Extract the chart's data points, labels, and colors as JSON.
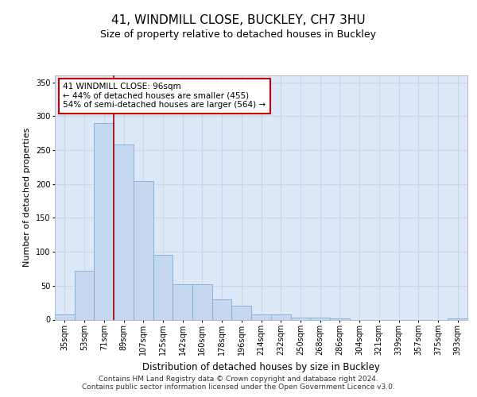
{
  "title": "41, WINDMILL CLOSE, BUCKLEY, CH7 3HU",
  "subtitle": "Size of property relative to detached houses in Buckley",
  "xlabel": "Distribution of detached houses by size in Buckley",
  "ylabel": "Number of detached properties",
  "categories": [
    "35sqm",
    "53sqm",
    "71sqm",
    "89sqm",
    "107sqm",
    "125sqm",
    "142sqm",
    "160sqm",
    "178sqm",
    "196sqm",
    "214sqm",
    "232sqm",
    "250sqm",
    "268sqm",
    "286sqm",
    "304sqm",
    "321sqm",
    "339sqm",
    "357sqm",
    "375sqm",
    "393sqm"
  ],
  "values": [
    8,
    72,
    290,
    258,
    204,
    95,
    52,
    52,
    30,
    20,
    8,
    8,
    3,
    3,
    2,
    0,
    0,
    0,
    0,
    0,
    2
  ],
  "bar_color": "#c5d8f0",
  "bar_edge_color": "#7aadd4",
  "vline_color": "#aa0000",
  "vline_x_index": 2.5,
  "annotation_text": "41 WINDMILL CLOSE: 96sqm\n← 44% of detached houses are smaller (455)\n54% of semi-detached houses are larger (564) →",
  "annotation_box_color": "#ffffff",
  "annotation_box_edge": "#cc0000",
  "grid_color": "#ccd6e8",
  "background_color": "#dce8f8",
  "ylim": [
    0,
    360
  ],
  "yticks": [
    0,
    50,
    100,
    150,
    200,
    250,
    300,
    350
  ],
  "footer": "Contains HM Land Registry data © Crown copyright and database right 2024.\nContains public sector information licensed under the Open Government Licence v3.0.",
  "title_fontsize": 11,
  "subtitle_fontsize": 9,
  "ylabel_fontsize": 8,
  "xlabel_fontsize": 8.5,
  "tick_fontsize": 7,
  "annotation_fontsize": 7.5,
  "footer_fontsize": 6.5
}
